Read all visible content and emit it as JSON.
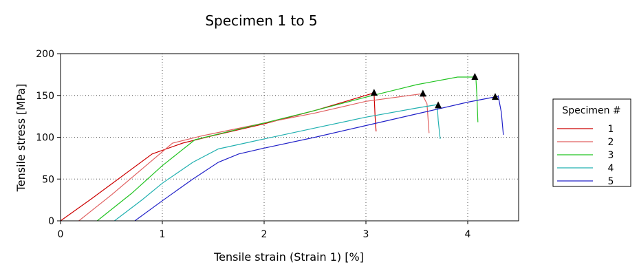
{
  "chart_data": {
    "type": "line",
    "title": "Specimen 1 to 5",
    "xlabel": "Tensile strain (Strain 1) [%]",
    "ylabel": "Tensile stress [MPa]",
    "xlim": [
      0,
      4.5
    ],
    "ylim": [
      0,
      200
    ],
    "xticks": [
      0,
      1,
      2,
      3,
      4
    ],
    "yticks": [
      0,
      50,
      100,
      150,
      200
    ],
    "grid": true,
    "legend": {
      "title": "Specimen #",
      "placement": "right"
    },
    "series": [
      {
        "name": "1",
        "color": "#cc0000",
        "x": [
          0,
          0.3,
          0.6,
          0.9,
          1.2,
          1.5,
          2.0,
          2.5,
          3.08,
          3.09,
          3.1
        ],
        "y": [
          0,
          26,
          53,
          80,
          93,
          102,
          116,
          132,
          153,
          125,
          107
        ],
        "break": {
          "x": 3.08,
          "y": 153
        }
      },
      {
        "name": "2",
        "color": "#e06060",
        "x": [
          0.18,
          0.5,
          0.8,
          1.1,
          1.4,
          2.0,
          2.5,
          3.0,
          3.55,
          3.6,
          3.62
        ],
        "y": [
          0,
          31,
          62,
          93,
          102,
          117,
          129,
          143,
          152,
          140,
          105
        ],
        "break": {
          "x": 3.56,
          "y": 152
        }
      },
      {
        "name": "3",
        "color": "#22c422",
        "x": [
          0.36,
          0.7,
          1.0,
          1.32,
          2.0,
          2.5,
          3.0,
          3.5,
          3.9,
          4.08,
          4.09,
          4.1
        ],
        "y": [
          0,
          33,
          66,
          97,
          117,
          132,
          148,
          163,
          172,
          172,
          150,
          118
        ],
        "break": {
          "x": 4.07,
          "y": 172
        }
      },
      {
        "name": "4",
        "color": "#20b0b0",
        "x": [
          0.53,
          0.8,
          1.0,
          1.3,
          1.55,
          2.0,
          2.5,
          3.0,
          3.5,
          3.7,
          3.71,
          3.73
        ],
        "y": [
          0,
          25,
          45,
          70,
          86,
          98,
          111,
          124,
          135,
          139,
          120,
          98
        ],
        "break": {
          "x": 3.71,
          "y": 138
        }
      },
      {
        "name": "5",
        "color": "#2020c8",
        "x": [
          0.73,
          1.0,
          1.3,
          1.55,
          1.75,
          2.0,
          2.5,
          3.0,
          3.5,
          4.0,
          4.3,
          4.33,
          4.35
        ],
        "y": [
          0,
          24,
          50,
          70,
          80,
          87,
          100,
          114,
          128,
          142,
          149,
          130,
          103
        ],
        "break": {
          "x": 4.27,
          "y": 148
        }
      }
    ]
  }
}
